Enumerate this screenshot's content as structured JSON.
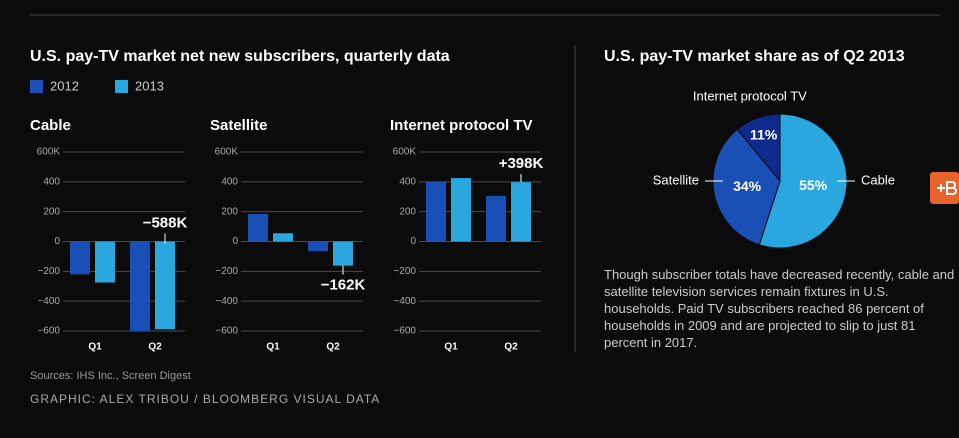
{
  "page": {
    "title": "U.S. pay-TV market net new subscribers, quarterly data",
    "sources": "Sources: IHS Inc., Screen Digest",
    "credit": "GRAPHIC: ALEX TRIBOU / BLOOMBERG VISUAL DATA",
    "note": "Though subscriber totals have decreased recently, cable and satellite television services remain fixtures in U.S. households. Paid TV subscribers reached 86 percent of households in 2009 and are projected to slip to just 81 percent in 2017."
  },
  "chart_data": [
    {
      "type": "bar",
      "title": "Cable",
      "categories": [
        "Q1",
        "Q2"
      ],
      "series": [
        {
          "name": "2012",
          "color": "#1a4fb5",
          "values": [
            -220,
            -600
          ]
        },
        {
          "name": "2013",
          "color": "#2aa7df",
          "values": [
            -275,
            -588
          ],
          "value_labels": [
            null,
            "−588K"
          ]
        }
      ],
      "ylim": [
        -600,
        600
      ],
      "yticks": [
        {
          "value": 600,
          "label": "600K"
        },
        400,
        200,
        0,
        {
          "value": -200,
          "label": "−200"
        },
        {
          "value": -400,
          "label": "−400"
        },
        {
          "value": -600,
          "label": "−600"
        }
      ],
      "grid": true
    },
    {
      "type": "bar",
      "title": "Satellite",
      "categories": [
        "Q1",
        "Q2"
      ],
      "series": [
        {
          "name": "2012",
          "color": "#1a4fb5",
          "values": [
            185,
            -65
          ]
        },
        {
          "name": "2013",
          "color": "#2aa7df",
          "values": [
            55,
            -162
          ],
          "value_labels": [
            null,
            "−162K"
          ]
        }
      ],
      "ylim": [
        -600,
        600
      ],
      "yticks": [
        {
          "value": 600,
          "label": "600K"
        },
        400,
        200,
        0,
        {
          "value": -200,
          "label": "−200"
        },
        {
          "value": -400,
          "label": "−400"
        },
        {
          "value": -600,
          "label": "−600"
        }
      ],
      "grid": true
    },
    {
      "type": "bar",
      "title": "Internet protocol TV",
      "categories": [
        "Q1",
        "Q2"
      ],
      "series": [
        {
          "name": "2012",
          "color": "#1a4fb5",
          "values": [
            400,
            305
          ]
        },
        {
          "name": "2013",
          "color": "#2aa7df",
          "values": [
            425,
            398
          ],
          "value_labels": [
            null,
            "+398K"
          ]
        }
      ],
      "ylim": [
        -600,
        600
      ],
      "yticks": [
        {
          "value": 600,
          "label": "600K"
        },
        400,
        200,
        0,
        {
          "value": -200,
          "label": "−200"
        },
        {
          "value": -400,
          "label": "−400"
        },
        {
          "value": -600,
          "label": "−600"
        }
      ],
      "grid": true
    },
    {
      "type": "pie",
      "title": "U.S. pay-TV market share as of Q2 2013",
      "categories": [
        "Cable",
        "Satellite",
        "Internet protocol TV"
      ],
      "values": [
        55,
        34,
        11
      ],
      "value_labels": [
        "55%",
        "34%",
        "11%"
      ],
      "colors": [
        "#2aa7df",
        "#1a4fb5",
        "#0d2a8c"
      ]
    }
  ]
}
